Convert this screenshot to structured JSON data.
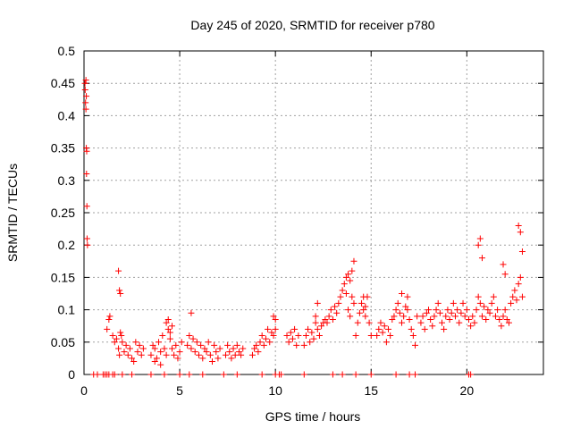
{
  "chart_data": {
    "type": "scatter",
    "title": "Day 245 of 2020, SRMTID for receiver p780",
    "xlabel": "GPS time / hours",
    "ylabel": "SRMTID / TECUs",
    "xlim": [
      0,
      24
    ],
    "ylim": [
      0,
      0.5
    ],
    "x_ticks": [
      0,
      5,
      10,
      15,
      20
    ],
    "y_ticks": [
      0,
      0.05,
      0.1,
      0.15,
      0.2,
      0.25,
      0.3,
      0.35,
      0.4,
      0.45,
      0.5
    ],
    "x_tick_labels": [
      "0",
      "5",
      "10",
      "15",
      "20"
    ],
    "y_tick_labels": [
      "0",
      "0.05",
      "0.1",
      "0.15",
      "0.2",
      "0.25",
      "0.3",
      "0.35",
      "0.4",
      "0.45",
      "0.5"
    ],
    "grid": true,
    "marker": "+",
    "color": "#ff0000",
    "series": [
      {
        "name": "SRMTID",
        "x": [
          0.05,
          0.06,
          0.08,
          0.1,
          0.12,
          0.13,
          0.15,
          0.16,
          0.18,
          0.1,
          0.12,
          0.14,
          1.2,
          1.3,
          1.35,
          1.5,
          1.6,
          1.7,
          1.8,
          1.85,
          1.9,
          2.0,
          2.1,
          2.2,
          2.3,
          2.4,
          2.5,
          2.6,
          2.7,
          2.8,
          2.9,
          3.0,
          3.1,
          1.8,
          1.85,
          1.9,
          1.95,
          3.5,
          3.6,
          3.7,
          3.8,
          3.9,
          4.0,
          4.1,
          4.2,
          4.3,
          4.4,
          4.5,
          4.6,
          4.7,
          4.8,
          4.9,
          5.0,
          5.1,
          4.3,
          4.4,
          4.5,
          4.6,
          3.7,
          4.0,
          5.4,
          5.5,
          5.6,
          5.7,
          5.8,
          5.9,
          6.0,
          6.1,
          6.2,
          6.3,
          6.4,
          6.5,
          6.6,
          6.7,
          6.8,
          6.9,
          7.0,
          7.1,
          5.6,
          7.4,
          7.5,
          7.6,
          7.7,
          7.8,
          7.9,
          8.0,
          8.1,
          8.2,
          8.3,
          8.8,
          8.9,
          9.0,
          9.1,
          9.2,
          9.3,
          9.4,
          9.5,
          9.6,
          9.7,
          9.8,
          9.9,
          10.0,
          9.9,
          10.0,
          10.6,
          10.7,
          10.8,
          10.9,
          11.0,
          11.1,
          11.2,
          11.5,
          11.6,
          11.7,
          11.8,
          11.9,
          12.0,
          12.1,
          12.2,
          12.3,
          12.4,
          12.5,
          12.6,
          12.2,
          12.1,
          12.7,
          12.8,
          12.9,
          13.0,
          13.1,
          13.2,
          13.3,
          13.4,
          13.5,
          13.6,
          13.7,
          13.8,
          13.9,
          14.0,
          14.1,
          13.7,
          13.8,
          13.9,
          14.0,
          14.1,
          14.2,
          14.3,
          14.4,
          14.5,
          14.6,
          14.7,
          14.8,
          14.9,
          15.0,
          14.6,
          14.7,
          15.3,
          15.4,
          15.5,
          15.6,
          15.7,
          15.8,
          15.9,
          16.0,
          16.1,
          16.2,
          16.3,
          16.4,
          16.5,
          16.6,
          16.7,
          16.8,
          16.9,
          17.0,
          17.1,
          17.2,
          17.3,
          17.4,
          16.6,
          16.9,
          17.6,
          17.7,
          17.8,
          17.9,
          18.0,
          18.1,
          18.2,
          18.3,
          18.4,
          18.5,
          18.6,
          18.7,
          18.8,
          18.9,
          19.0,
          19.1,
          19.2,
          19.3,
          19.4,
          19.5,
          19.6,
          19.7,
          19.8,
          19.9,
          20.0,
          20.1,
          20.2,
          20.3,
          20.4,
          20.5,
          20.6,
          20.7,
          20.8,
          20.9,
          21.0,
          21.1,
          21.2,
          21.3,
          21.4,
          21.5,
          21.6,
          21.7,
          21.8,
          21.9,
          22.0,
          22.1,
          22.2,
          22.3,
          22.4,
          22.5,
          22.6,
          22.7,
          22.8,
          22.9,
          20.6,
          20.7,
          20.8,
          21.9,
          22.0,
          22.7,
          22.8,
          22.9,
          0.5,
          0.7,
          1.0,
          1.1,
          1.2,
          1.3,
          1.5,
          1.6,
          2.0,
          2.5,
          3.5,
          4.2,
          5.0,
          5.5,
          6.2,
          7.3,
          8.0,
          9.3,
          10.0,
          10.2,
          10.3,
          11.5,
          13.0,
          13.5,
          14.2,
          15.0,
          16.3,
          17.0,
          17.3,
          20.1,
          20.2
        ],
        "y": [
          0.45,
          0.44,
          0.42,
          0.41,
          0.35,
          0.31,
          0.26,
          0.21,
          0.2,
          0.455,
          0.43,
          0.345,
          0.07,
          0.085,
          0.09,
          0.06,
          0.05,
          0.055,
          0.04,
          0.03,
          0.065,
          0.05,
          0.035,
          0.045,
          0.03,
          0.04,
          0.025,
          0.02,
          0.05,
          0.035,
          0.045,
          0.03,
          0.04,
          0.16,
          0.13,
          0.125,
          0.06,
          0.03,
          0.045,
          0.04,
          0.025,
          0.05,
          0.035,
          0.06,
          0.04,
          0.03,
          0.07,
          0.055,
          0.04,
          0.03,
          0.045,
          0.025,
          0.035,
          0.05,
          0.08,
          0.085,
          0.065,
          0.075,
          0.02,
          0.015,
          0.045,
          0.06,
          0.04,
          0.055,
          0.035,
          0.05,
          0.03,
          0.045,
          0.025,
          0.04,
          0.035,
          0.05,
          0.03,
          0.02,
          0.045,
          0.035,
          0.025,
          0.04,
          0.095,
          0.03,
          0.045,
          0.035,
          0.025,
          0.04,
          0.03,
          0.045,
          0.035,
          0.03,
          0.04,
          0.03,
          0.04,
          0.045,
          0.035,
          0.05,
          0.06,
          0.045,
          0.055,
          0.07,
          0.05,
          0.065,
          0.06,
          0.07,
          0.09,
          0.085,
          0.06,
          0.05,
          0.065,
          0.055,
          0.07,
          0.045,
          0.06,
          0.045,
          0.06,
          0.07,
          0.05,
          0.065,
          0.055,
          0.08,
          0.07,
          0.06,
          0.075,
          0.08,
          0.085,
          0.11,
          0.09,
          0.08,
          0.09,
          0.1,
          0.085,
          0.105,
          0.095,
          0.11,
          0.12,
          0.13,
          0.14,
          0.125,
          0.1,
          0.09,
          0.12,
          0.11,
          0.15,
          0.155,
          0.145,
          0.16,
          0.175,
          0.06,
          0.08,
          0.095,
          0.11,
          0.1,
          0.09,
          0.12,
          0.08,
          0.06,
          0.12,
          0.105,
          0.06,
          0.07,
          0.08,
          0.065,
          0.075,
          0.05,
          0.07,
          0.06,
          0.085,
          0.09,
          0.1,
          0.11,
          0.095,
          0.08,
          0.09,
          0.105,
          0.1,
          0.085,
          0.07,
          0.06,
          0.045,
          0.09,
          0.125,
          0.12,
          0.08,
          0.09,
          0.07,
          0.095,
          0.1,
          0.085,
          0.075,
          0.09,
          0.1,
          0.11,
          0.095,
          0.08,
          0.07,
          0.09,
          0.1,
          0.085,
          0.095,
          0.11,
          0.09,
          0.1,
          0.08,
          0.095,
          0.11,
          0.09,
          0.1,
          0.085,
          0.075,
          0.09,
          0.08,
          0.1,
          0.12,
          0.11,
          0.09,
          0.105,
          0.085,
          0.1,
          0.095,
          0.11,
          0.12,
          0.09,
          0.1,
          0.085,
          0.075,
          0.09,
          0.1,
          0.085,
          0.08,
          0.11,
          0.12,
          0.13,
          0.115,
          0.14,
          0.15,
          0.12,
          0.2,
          0.21,
          0.18,
          0.17,
          0.155,
          0.23,
          0.22,
          0.19,
          0,
          0,
          0,
          0,
          0,
          0,
          0,
          0,
          0,
          0,
          0,
          0,
          0,
          0,
          0,
          0,
          0,
          0,
          0,
          0,
          0,
          0,
          0,
          0,
          0,
          0,
          0,
          0,
          0,
          0,
          0
        ]
      }
    ]
  }
}
